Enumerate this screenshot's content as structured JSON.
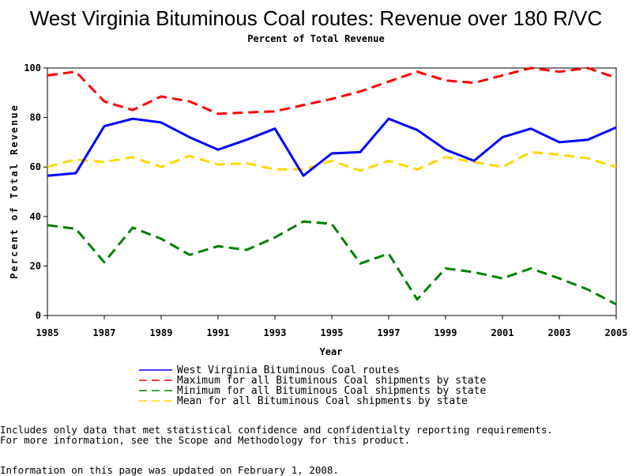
{
  "chart_data": {
    "type": "line",
    "title": "West Virginia Bituminous Coal routes: Revenue over 180 R/VC",
    "subtitle": "Percent of Total Revenue",
    "xlabel": "Year",
    "ylabel": "Percent of Total Revenue",
    "xlim": [
      1985,
      2005
    ],
    "ylim": [
      0,
      100
    ],
    "x_ticks": [
      1985,
      1987,
      1989,
      1991,
      1993,
      1995,
      1997,
      1999,
      2001,
      2003,
      2005
    ],
    "y_ticks": [
      0,
      20,
      40,
      60,
      80,
      100
    ],
    "grid": false,
    "legend_position": "bottom",
    "x": [
      1985,
      1986,
      1987,
      1988,
      1989,
      1990,
      1991,
      1992,
      1993,
      1994,
      1995,
      1996,
      1997,
      1998,
      1999,
      2000,
      2001,
      2002,
      2003,
      2004,
      2005
    ],
    "series": [
      {
        "name": "West Virginia Bituminous Coal routes",
        "color": "#0000ff",
        "style": "solid",
        "values": [
          56.5,
          57.5,
          76.5,
          79.5,
          78,
          72,
          67,
          71,
          75.5,
          56.5,
          65.5,
          66,
          79.5,
          75,
          67,
          62.5,
          72,
          75.5,
          70,
          71,
          76
        ]
      },
      {
        "name": "Maximum for all Bituminous Coal shipments by state",
        "color": "#ff0000",
        "style": "dashed",
        "values": [
          97,
          98.5,
          86.5,
          83,
          88.5,
          86.5,
          81.5,
          82,
          82.5,
          85,
          87.5,
          90.5,
          94.5,
          98.5,
          95,
          94,
          97,
          100,
          98.5,
          100,
          96
        ]
      },
      {
        "name": "Minimum for all Bituminous Coal shipments by state",
        "color": "#008000",
        "style": "dashed",
        "values": [
          36.5,
          35,
          21.5,
          35.5,
          31,
          24.5,
          28,
          26.5,
          31.5,
          38,
          37,
          21,
          25,
          6.5,
          19,
          17.5,
          15,
          19,
          15,
          10.5,
          4.5
        ]
      },
      {
        "name": "Mean for all Bituminous Coal shipments by state",
        "color": "#ffd700",
        "style": "dashed",
        "values": [
          60,
          63,
          62,
          64,
          60,
          64.5,
          61,
          61.5,
          59,
          59,
          62.5,
          58.5,
          62.5,
          59,
          64,
          62,
          60,
          66,
          65,
          63.5,
          60
        ]
      }
    ]
  },
  "notes": {
    "line1": "Includes only data that met statistical confidence and confidentialty reporting requirements.",
    "line2": "For more information, see the Scope and Methodology for this product.",
    "line3": "Information on this page was updated on February 1, 2008."
  }
}
